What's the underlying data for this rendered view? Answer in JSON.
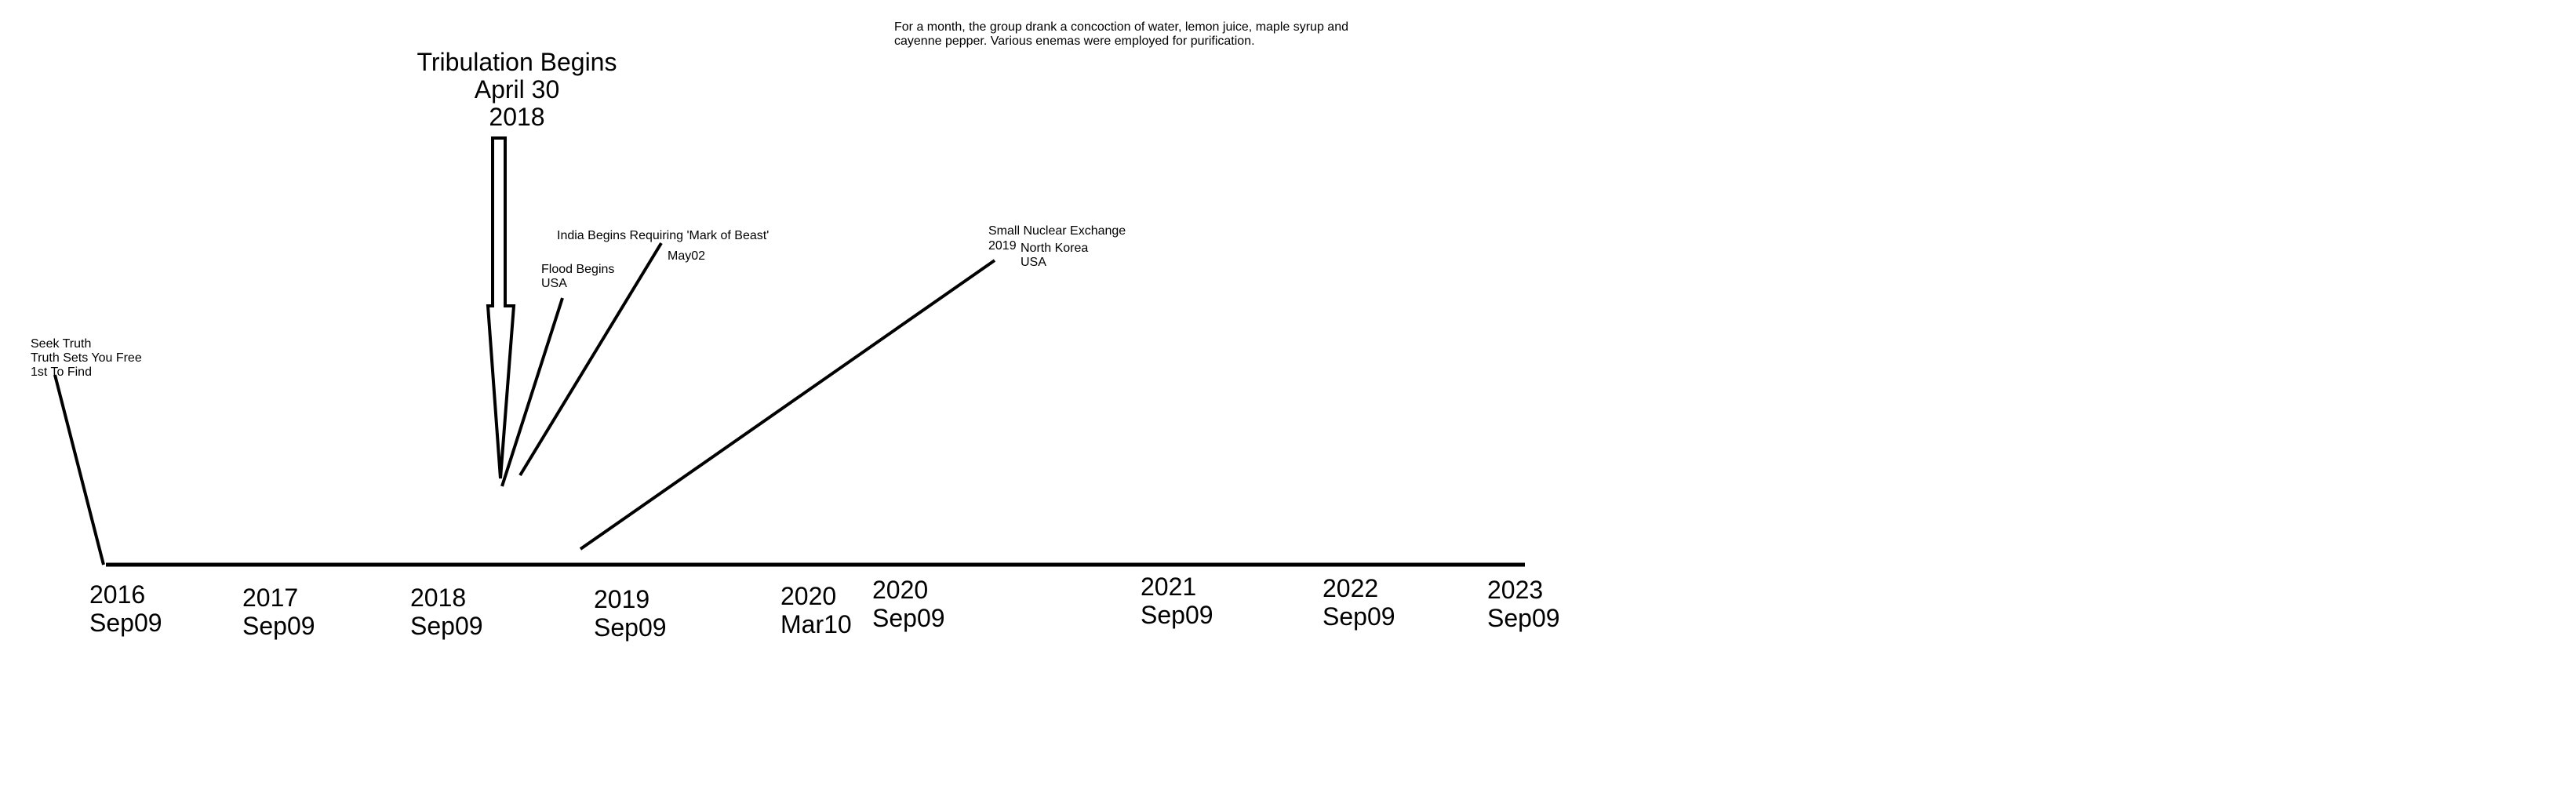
{
  "timeline": {
    "ticks": [
      {
        "year": "2016",
        "date": "Sep09"
      },
      {
        "year": "2017",
        "date": "Sep09"
      },
      {
        "year": "2018",
        "date": "Sep09"
      },
      {
        "year": "2019",
        "date": "Sep09"
      },
      {
        "year": "2020",
        "date": "Mar10"
      },
      {
        "year": "2020",
        "date": "Sep09"
      },
      {
        "year": "2021",
        "date": "Sep09"
      },
      {
        "year": "2022",
        "date": "Sep09"
      },
      {
        "year": "2023",
        "date": "Sep09"
      }
    ]
  },
  "annotations": {
    "seek_truth": {
      "line1": "Seek Truth",
      "line2": "Truth Sets You Free",
      "line3": "1st To Find"
    },
    "tribulation": {
      "line1": "Tribulation Begins",
      "line2": "April 30",
      "line3": "2018"
    },
    "flood": {
      "line1": "Flood Begins",
      "line2": "USA"
    },
    "india": {
      "line1": "India Begins Requiring 'Mark of Beast'",
      "date": "May02"
    },
    "nuclear": {
      "line1": "Small Nuclear Exchange",
      "year": "2019",
      "place1": "North Korea",
      "place2": "USA"
    },
    "cleanse": {
      "text": "For a month, the group drank a concoction of water, lemon juice, maple syrup and cayenne pepper. Various enemas were employed for purification."
    }
  }
}
